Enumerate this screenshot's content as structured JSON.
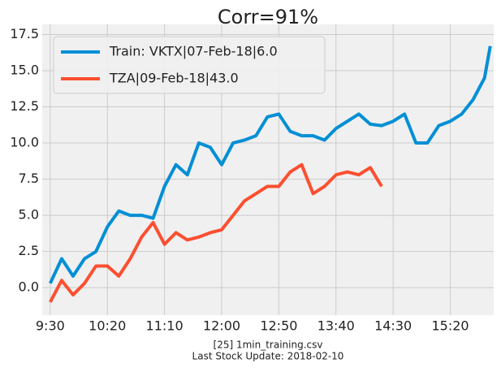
{
  "chart_data": {
    "type": "line",
    "title": "Corr=91%",
    "x": [
      570,
      580,
      590,
      600,
      610,
      620,
      630,
      640,
      650,
      660,
      670,
      680,
      690,
      700,
      710,
      720,
      730,
      740,
      750,
      760,
      770,
      780,
      790,
      800,
      810,
      820,
      830,
      840,
      850,
      860,
      870,
      880,
      890,
      900,
      910,
      920,
      930,
      940,
      950,
      955
    ],
    "series": [
      {
        "name": "Train: VKTX|07-Feb-18|6.0",
        "color": "#008fd5",
        "values": [
          0.3,
          2.0,
          0.8,
          2.0,
          2.5,
          4.2,
          5.3,
          5.0,
          5.0,
          4.8,
          7.0,
          8.5,
          7.8,
          10.0,
          9.7,
          8.5,
          10.0,
          10.2,
          10.5,
          11.8,
          12.0,
          10.8,
          10.5,
          10.5,
          10.2,
          11.0,
          11.5,
          12.0,
          11.3,
          11.2,
          11.5,
          12.0,
          10.0,
          10.0,
          11.2,
          11.5,
          12.0,
          13.0,
          14.5,
          16.7
        ]
      },
      {
        "name": "TZA|09-Feb-18|43.0",
        "color": "#fc4f30",
        "values": [
          -1.0,
          0.5,
          -0.5,
          0.3,
          1.5,
          1.5,
          0.8,
          2.0,
          3.5,
          4.5,
          3.0,
          3.8,
          3.3,
          3.5,
          3.8,
          4.0,
          5.0,
          6.0,
          6.5,
          7.0,
          7.0,
          8.0,
          8.5,
          6.5,
          7.0,
          7.8,
          8.0,
          7.8,
          8.3,
          7.0,
          null,
          null,
          null,
          null,
          null,
          null,
          null,
          null,
          null,
          null
        ]
      }
    ],
    "xlim": [
      563,
      958
    ],
    "xticks": [
      {
        "value": 570,
        "label": "9:30"
      },
      {
        "value": 620,
        "label": "10:20"
      },
      {
        "value": 670,
        "label": "11:10"
      },
      {
        "value": 720,
        "label": "12:00"
      },
      {
        "value": 770,
        "label": "12:50"
      },
      {
        "value": 820,
        "label": "13:40"
      },
      {
        "value": 870,
        "label": "14:30"
      },
      {
        "value": 920,
        "label": "15:20"
      }
    ],
    "ylim": [
      -1.9,
      18.2
    ],
    "yticks": [
      {
        "value": 0,
        "label": "0.0"
      },
      2.5,
      {
        "value": 5,
        "label": "5.0"
      },
      7.5,
      {
        "value": 10,
        "label": "10.0"
      },
      12.5,
      {
        "value": 15,
        "label": "15.0"
      },
      17.5
    ],
    "grid": true,
    "legend": "upper-left",
    "annotations": [
      "[25] 1min_training.csv",
      "Last Stock Update: 2018-02-10"
    ]
  }
}
